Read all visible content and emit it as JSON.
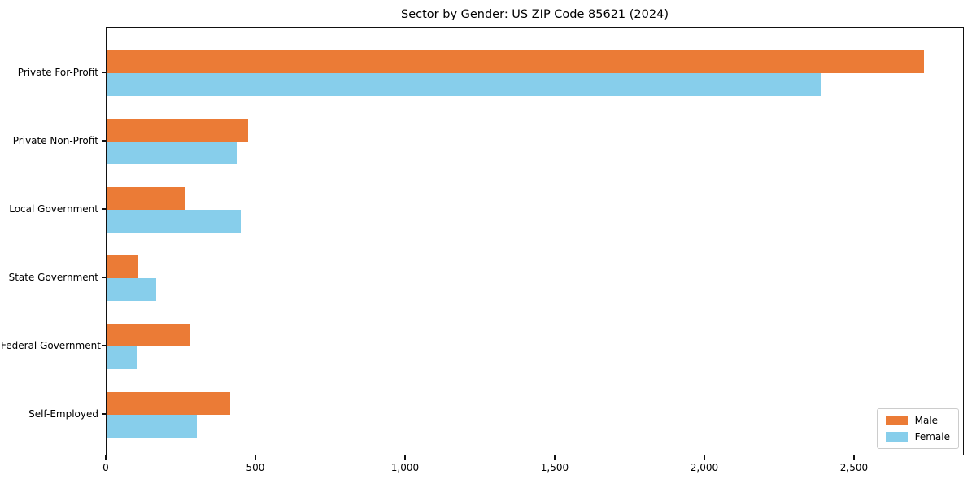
{
  "title": "Sector by Gender: US ZIP Code 85621 (2024)",
  "chart_data": {
    "type": "bar",
    "orientation": "horizontal",
    "title": "Sector by Gender: US ZIP Code 85621 (2024)",
    "categories": [
      "Private For-Profit",
      "Private Non-Profit",
      "Local Government",
      "State Government",
      "Federal Government",
      "Self-Employed"
    ],
    "series": [
      {
        "name": "Male",
        "color": "#EB7B36",
        "values": [
          2731,
          473,
          264,
          106,
          277,
          413
        ]
      },
      {
        "name": "Female",
        "color": "#87CEEB",
        "values": [
          2389,
          435,
          448,
          166,
          103,
          302
        ]
      }
    ],
    "xlabel": "",
    "ylabel": "",
    "xlim": [
      0,
      2867
    ],
    "xticks": [
      0,
      500,
      1000,
      1500,
      2000,
      2500
    ],
    "xtick_labels": [
      "0",
      "500",
      "1,000",
      "1,500",
      "2,000",
      "2,500"
    ],
    "grid": false,
    "legend_position": "lower right",
    "background_color": "#ffffff",
    "spine_color": "#111111"
  }
}
